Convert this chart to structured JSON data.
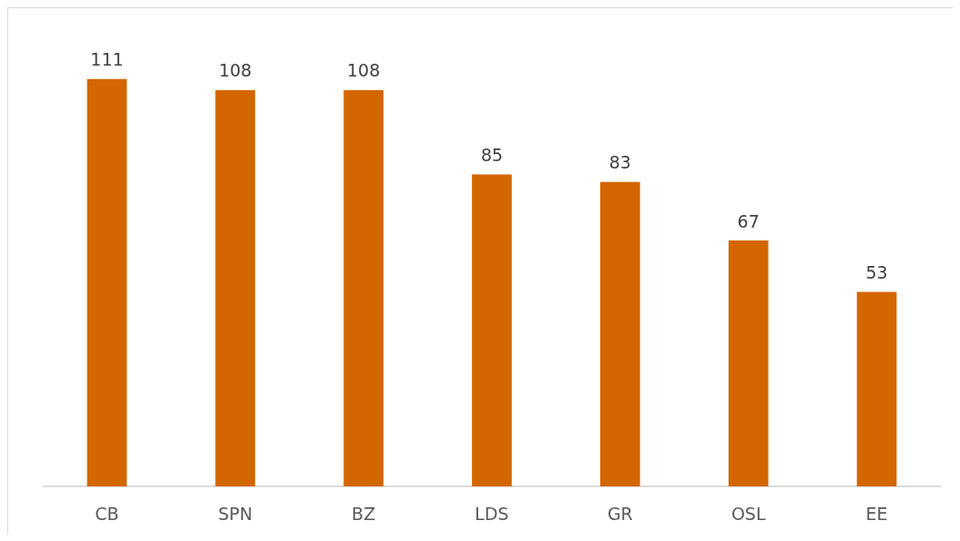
{
  "chart_data": {
    "type": "bar",
    "categories": [
      "CB",
      "SPN",
      "BZ",
      "LDS",
      "GR",
      "OSL",
      "EE"
    ],
    "values": [
      111,
      108,
      108,
      85,
      83,
      67,
      53
    ],
    "color": "#d46600",
    "data_labels": true
  }
}
